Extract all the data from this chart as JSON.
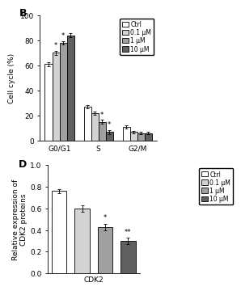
{
  "panel_B": {
    "title": "B",
    "ylabel": "Cell cycle (%)",
    "ylim": [
      0,
      100
    ],
    "yticks": [
      0,
      20,
      40,
      60,
      80,
      100
    ],
    "groups": [
      "G0/G1",
      "S",
      "G2/M"
    ],
    "categories": [
      "Ctrl",
      "0.1 μM",
      "1 μM",
      "10 μM"
    ],
    "values": [
      [
        61,
        70,
        78,
        84
      ],
      [
        27,
        22,
        15,
        7
      ],
      [
        11,
        7,
        6,
        6
      ]
    ],
    "errors": [
      [
        1.5,
        1.5,
        1.5,
        1.5
      ],
      [
        1.5,
        1.5,
        1.5,
        1.5
      ],
      [
        1.0,
        1.0,
        1.0,
        1.0
      ]
    ],
    "bar_colors": [
      "#ffffff",
      "#d3d3d3",
      "#a0a0a0",
      "#606060"
    ],
    "bar_edgecolor": "#000000",
    "sig_G0G1": [
      false,
      true,
      true,
      false
    ],
    "sig_S": [
      false,
      false,
      true,
      true
    ],
    "sig_G2M": [
      false,
      false,
      false,
      false
    ]
  },
  "panel_D": {
    "title": "D",
    "ylabel": "Relative expression of\nCDK2 proteins",
    "xlabel": "CDK2",
    "ylim": [
      0,
      1.0
    ],
    "yticks": [
      0.0,
      0.2,
      0.4,
      0.6,
      0.8,
      1.0
    ],
    "categories": [
      "Ctrl",
      "0.1 μM",
      "1 μM",
      "10 μM"
    ],
    "values": [
      0.76,
      0.6,
      0.43,
      0.3
    ],
    "errors": [
      0.02,
      0.03,
      0.03,
      0.03
    ],
    "bar_colors": [
      "#ffffff",
      "#d3d3d3",
      "#a0a0a0",
      "#606060"
    ],
    "bar_edgecolor": "#000000",
    "sig_labels": [
      "",
      "",
      "*",
      "**"
    ]
  },
  "legend_labels": [
    "Ctrl",
    "0.1 μM",
    "1 μM",
    "10 μM"
  ],
  "legend_colors": [
    "#ffffff",
    "#d3d3d3",
    "#a0a0a0",
    "#606060"
  ],
  "fig_width": 4.74,
  "fig_height": 3.53
}
